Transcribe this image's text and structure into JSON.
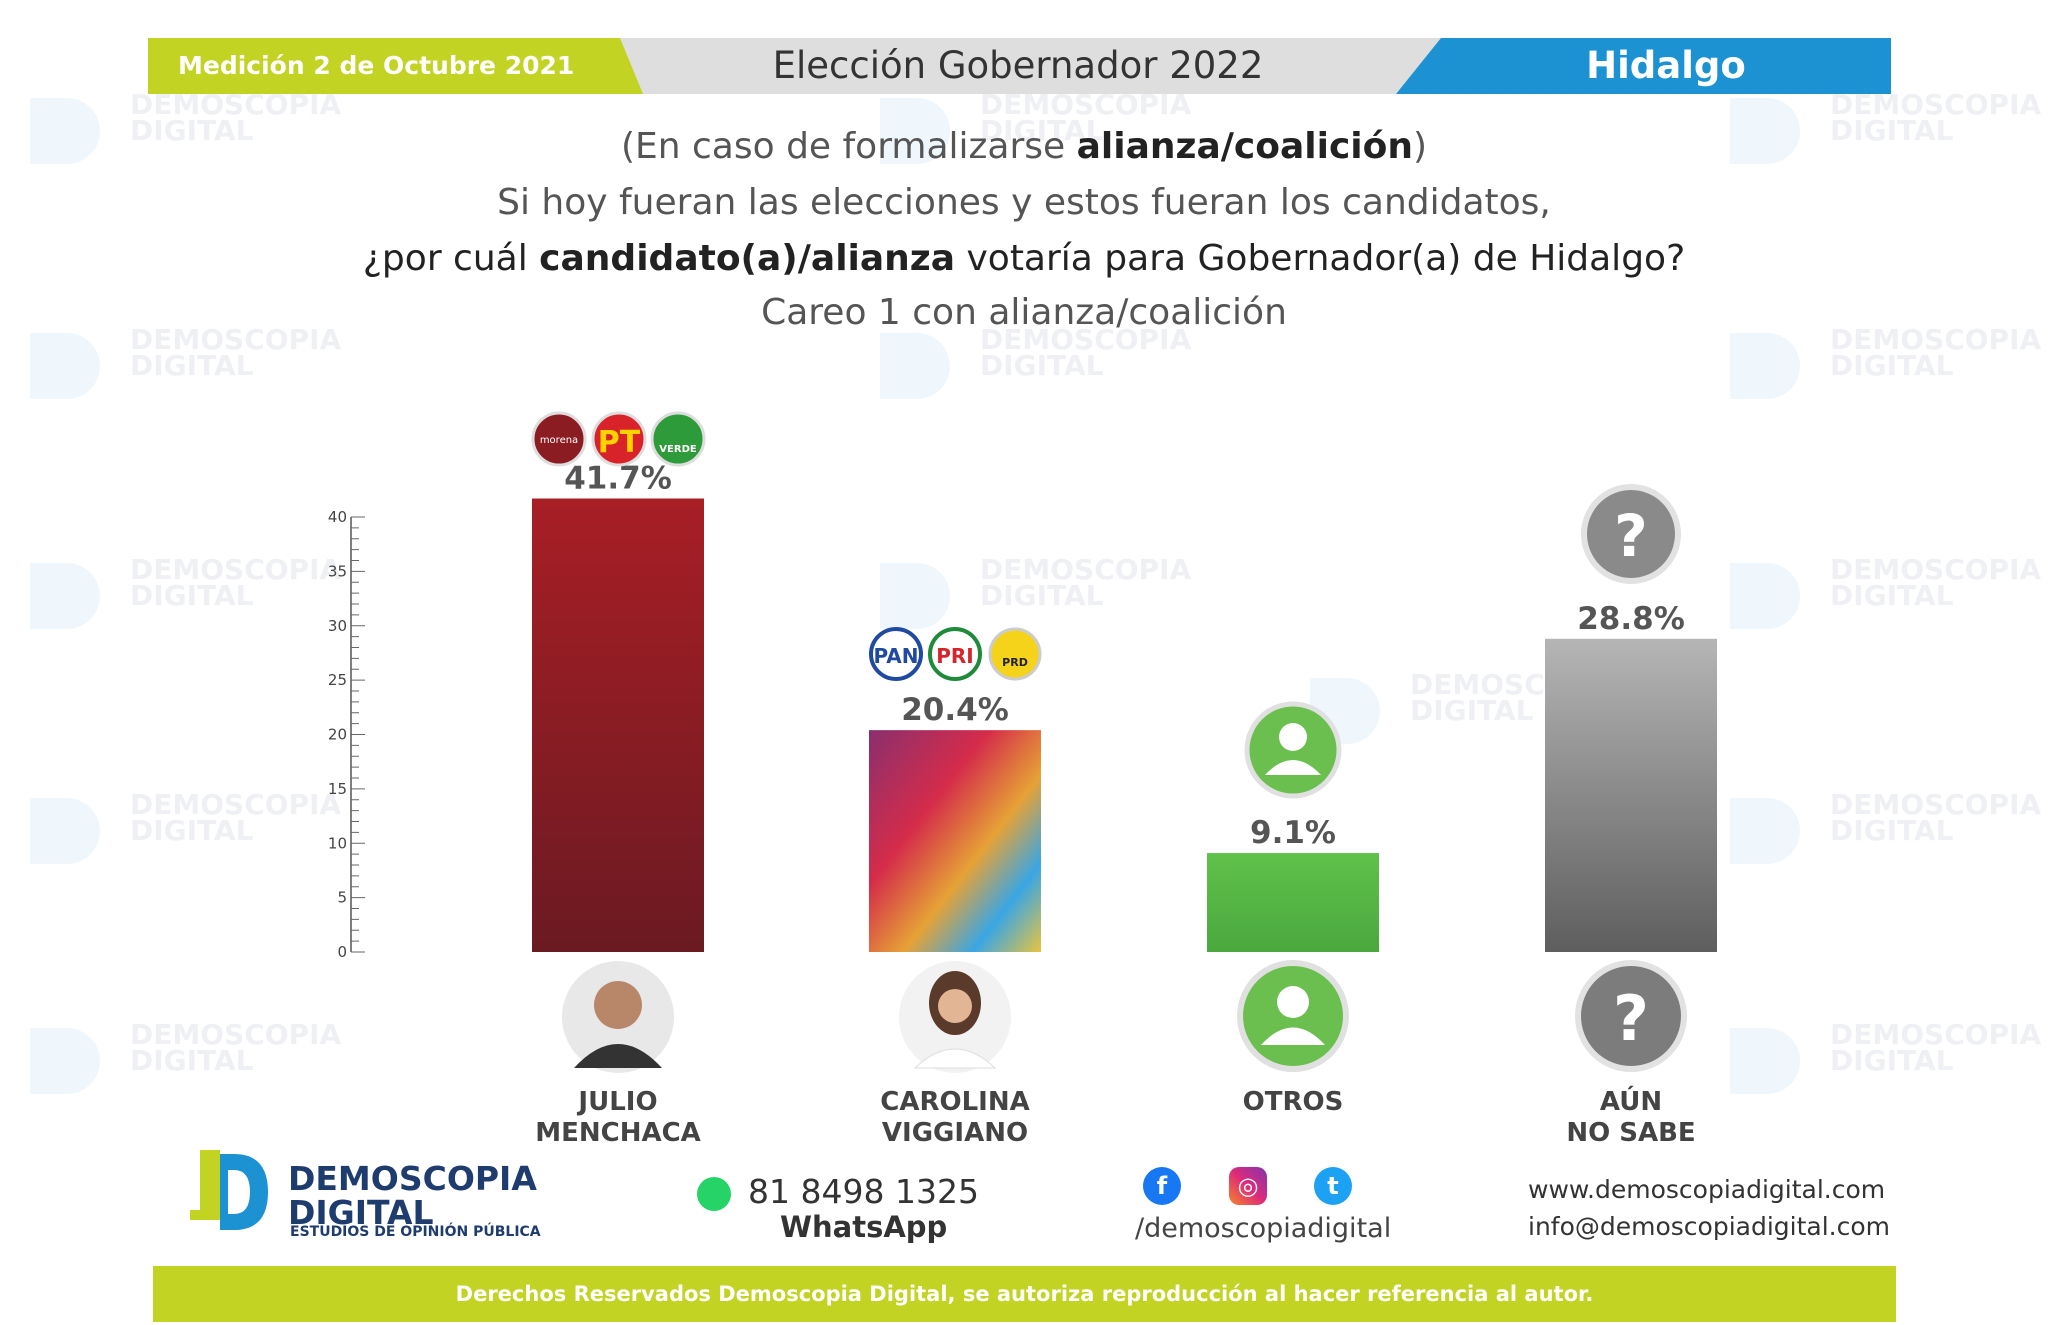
{
  "header": {
    "date": "Medición 2 de Octubre 2021",
    "title": "Elección Gobernador 2022",
    "region": "Hidalgo"
  },
  "question": {
    "line1_pre": "(En caso de formalizarse ",
    "line1_bold": "alianza/coalición",
    "line1_post": ")",
    "line2": "Si hoy fueran las elecciones y estos fueran los candidatos,",
    "line3_pre": "¿por cuál ",
    "line3_bold": "candidato(a)/alianza",
    "line3_post": " votaría para Gobernador(a) de Hidalgo?",
    "line4": "Careo 1 con alianza/coalición"
  },
  "chart_data": {
    "type": "bar",
    "categories": [
      "JULIO MENCHACA",
      "CAROLINA VIGGIANO",
      "OTROS",
      "AÚN NO SABE"
    ],
    "values": [
      41.7,
      20.4,
      9.1,
      28.8
    ],
    "data_labels": [
      "41.7%",
      "20.4%",
      "9.1%",
      "28.8%"
    ],
    "ylim": [
      0,
      40
    ],
    "yticks": [
      0,
      5,
      10,
      15,
      20,
      25,
      30,
      35,
      40
    ],
    "grid": false,
    "colors": [
      "#8e1d25",
      "#e3a339",
      "#56b947",
      "#9a9a9a"
    ]
  },
  "candidates": [
    {
      "line1": "JULIO",
      "line2": "MENCHACA",
      "parties": [
        "morena",
        "PT",
        "VERDE"
      ]
    },
    {
      "line1": "CAROLINA",
      "line2": "VIGGIANO",
      "parties": [
        "PAN",
        "PRI",
        "PRD"
      ]
    },
    {
      "line1": "OTROS",
      "line2": ""
    },
    {
      "line1": "AÚN",
      "line2": "NO SABE"
    }
  ],
  "footer": {
    "brand1": "DEMOSCOPIA",
    "brand2": "DIGITAL",
    "brand_sub": "ESTUDIOS DE OPINIÓN PÚBLICA",
    "phone": "81 8498 1325",
    "phone_label": "WhatsApp",
    "social_handle": "/demoscopiadigital",
    "website": "www.demoscopiadigital.com",
    "email": "info@demoscopiadigital.com",
    "rights": "Derechos Reservados Demoscopia Digital, se autoriza reproducción al hacer referencia al autor.",
    "icons": [
      "whatsapp-icon",
      "facebook-icon",
      "instagram-icon",
      "twitter-icon"
    ]
  }
}
